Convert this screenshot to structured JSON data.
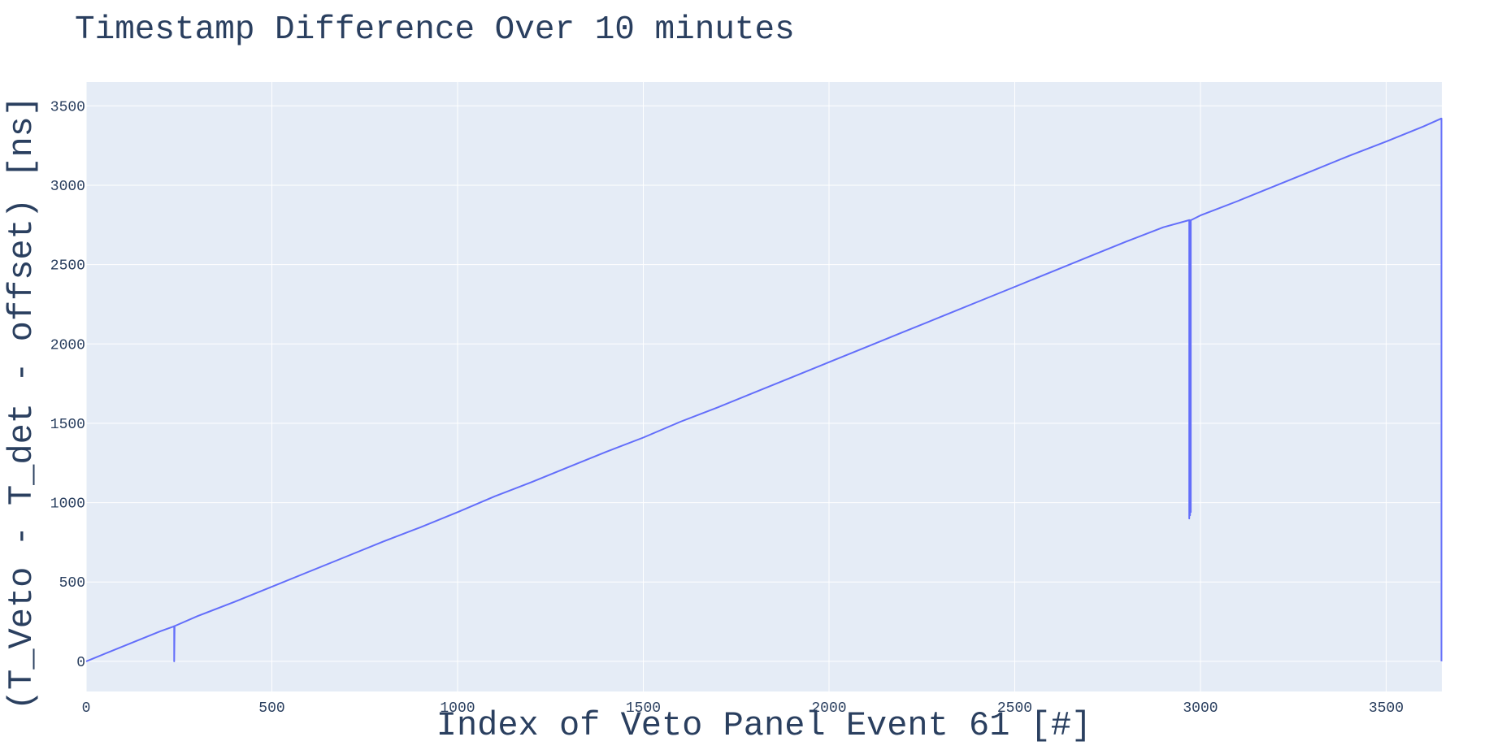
{
  "chart_data": {
    "type": "line",
    "title": "Timestamp Difference Over 10 minutes",
    "xlabel": "Index of Veto Panel Event 61 [#]",
    "ylabel": "(T_Veto - T_det - offset) [ns]",
    "xlim": [
      0,
      3650
    ],
    "ylim": [
      -190,
      3650
    ],
    "x_ticks": [
      0,
      500,
      1000,
      1500,
      2000,
      2500,
      3000,
      3500
    ],
    "y_ticks": [
      0,
      500,
      1000,
      1500,
      2000,
      2500,
      3000,
      3500
    ],
    "grid": true,
    "colors": {
      "line": "#636efa",
      "plot_bg": "#e5ecf6",
      "grid": "#ffffff",
      "text": "#2a3f5f"
    },
    "series": [
      {
        "x": [
          0,
          100,
          200,
          236,
          237,
          237,
          238,
          300,
          400,
          500,
          600,
          700,
          800,
          900,
          1000,
          1100,
          1200,
          1300,
          1400,
          1500,
          1600,
          1700,
          1800,
          1900,
          2000,
          2100,
          2200,
          2300,
          2400,
          2500,
          2600,
          2700,
          2800,
          2900,
          2970,
          2970,
          2971,
          2972,
          2973,
          2974,
          2974,
          2975,
          3000,
          3100,
          3200,
          3300,
          3400,
          3500,
          3600,
          3648,
          3649,
          3649
        ],
        "values": [
          0,
          95,
          190,
          220,
          222,
          0,
          222,
          285,
          375,
          470,
          565,
          660,
          755,
          845,
          940,
          1040,
          1130,
          1225,
          1320,
          1410,
          1510,
          1600,
          1695,
          1790,
          1885,
          1980,
          2075,
          2170,
          2265,
          2360,
          2455,
          2550,
          2645,
          2735,
          2780,
          900,
          2780,
          920,
          2770,
          940,
          2780,
          2780,
          2810,
          2900,
          2995,
          3090,
          3185,
          3275,
          3370,
          3420,
          3420,
          0
        ]
      }
    ]
  }
}
